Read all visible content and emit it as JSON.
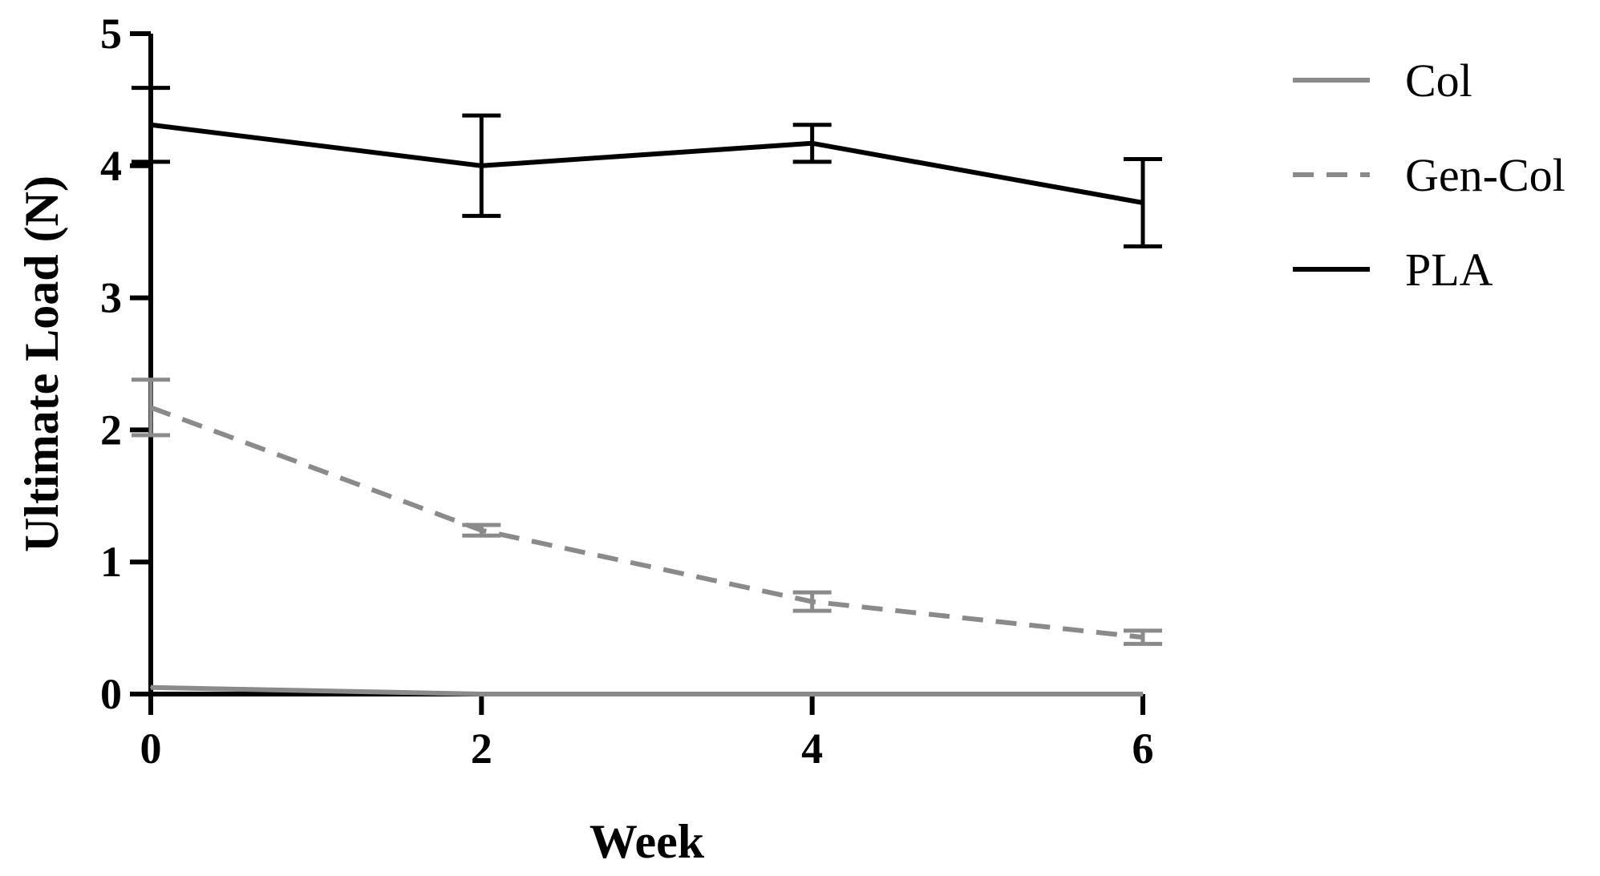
{
  "chart_data": {
    "type": "line",
    "title": "",
    "xlabel": "Week",
    "ylabel": "Ultimate Load (N)",
    "x": [
      0,
      2,
      4,
      6
    ],
    "x_ticks": [
      "0",
      "2",
      "4",
      "6"
    ],
    "y_ticks": [
      "0",
      "1",
      "2",
      "3",
      "4",
      "5"
    ],
    "xlim": [
      0,
      6
    ],
    "ylim": [
      0,
      5
    ],
    "grid": false,
    "legend_position": "right",
    "series": [
      {
        "name": "Col",
        "values": [
          0.05,
          0.0,
          0.0,
          0.0
        ],
        "error": [
          0.0,
          0.0,
          0.0,
          0.0
        ],
        "color": "#8a8a8a",
        "dash": "solid"
      },
      {
        "name": "Gen-Col",
        "values": [
          2.17,
          1.24,
          0.7,
          0.43
        ],
        "error": [
          0.21,
          0.04,
          0.07,
          0.05
        ],
        "color": "#8a8a8a",
        "dash": "dashed"
      },
      {
        "name": "PLA",
        "values": [
          4.31,
          4.0,
          4.17,
          3.72
        ],
        "error": [
          0.28,
          0.38,
          0.14,
          0.33
        ],
        "color": "#000000",
        "dash": "solid"
      }
    ]
  }
}
